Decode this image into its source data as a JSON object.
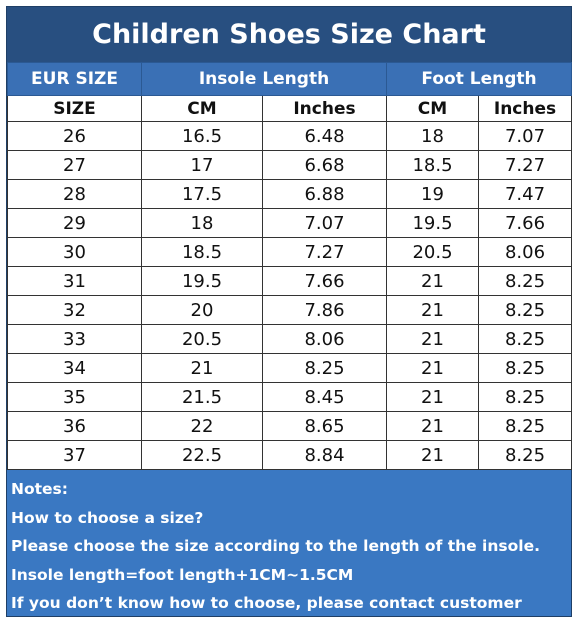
{
  "title": "Children Shoes Size Chart",
  "header": {
    "eur_size": "EUR SIZE",
    "insole_length": "Insole Length",
    "foot_length": "Foot Length"
  },
  "subheader": {
    "size": "SIZE",
    "insole_cm": "CM",
    "insole_inches": "Inches",
    "foot_cm": "CM",
    "foot_inches": "Inches"
  },
  "rows": [
    [
      "26",
      "16.5",
      "6.48",
      "18",
      "7.07"
    ],
    [
      "27",
      "17",
      "6.68",
      "18.5",
      "7.27"
    ],
    [
      "28",
      "17.5",
      "6.88",
      "19",
      "7.47"
    ],
    [
      "29",
      "18",
      "7.07",
      "19.5",
      "7.66"
    ],
    [
      "30",
      "18.5",
      "7.27",
      "20.5",
      "8.06"
    ],
    [
      "31",
      "19.5",
      "7.66",
      "21",
      "8.25"
    ],
    [
      "32",
      "20",
      "7.86",
      "21",
      "8.25"
    ],
    [
      "33",
      "20.5",
      "8.06",
      "21",
      "8.25"
    ],
    [
      "34",
      "21",
      "8.25",
      "21",
      "8.25"
    ],
    [
      "35",
      "21.5",
      "8.45",
      "21",
      "8.25"
    ],
    [
      "36",
      "22",
      "8.65",
      "21",
      "8.25"
    ],
    [
      "37",
      "22.5",
      "8.84",
      "21",
      "8.25"
    ]
  ],
  "notes": [
    "Notes:",
    "How to choose a size?",
    "Please choose the size according to the length of the insole.",
    "Insole length=foot length+1CM~1.5CM",
    "If you don’t know how to choose, please contact customer"
  ],
  "colors": {
    "title_bg": "#284f80",
    "header_bg": "#3a70b5",
    "notes_bg": "#3a78c2"
  }
}
